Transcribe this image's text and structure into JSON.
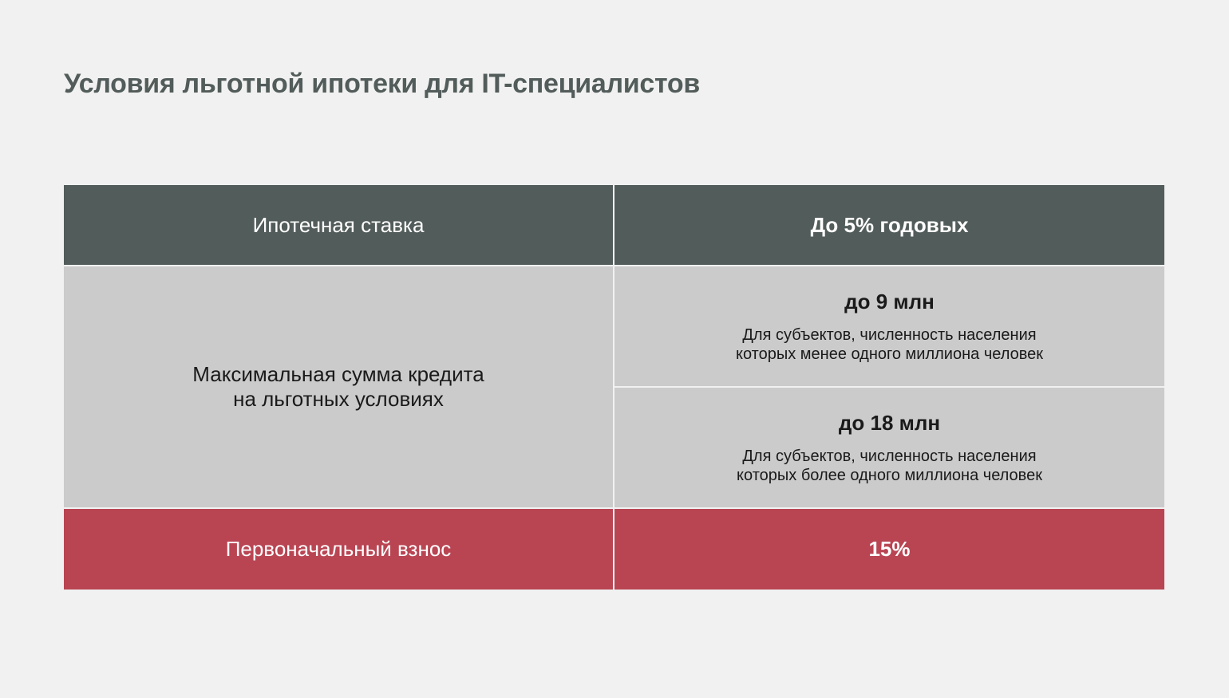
{
  "title": "Условия льготной ипотеки для IT-специалистов",
  "table": {
    "rate_row": {
      "label": "Ипотечная ставка",
      "value": "До 5% годовых"
    },
    "loan_row": {
      "label_line1": "Максимальная сумма кредита",
      "label_line2": "на льготных условиях",
      "options": [
        {
          "amount": "до 9 млн",
          "note_line1": "Для субъектов, численность населения",
          "note_line2": "которых менее одного миллиона человек"
        },
        {
          "amount": "до 18 млн",
          "note_line1": "Для субъектов, численность населения",
          "note_line2": "которых более одного миллиона человек"
        }
      ]
    },
    "down_payment_row": {
      "label": "Первоначальный взнос",
      "value": "15%"
    }
  },
  "colors": {
    "background": "#f1f1f1",
    "header_dark": "#525c5a",
    "cell_gray": "#cbcbcb",
    "accent_red": "#b94553"
  }
}
